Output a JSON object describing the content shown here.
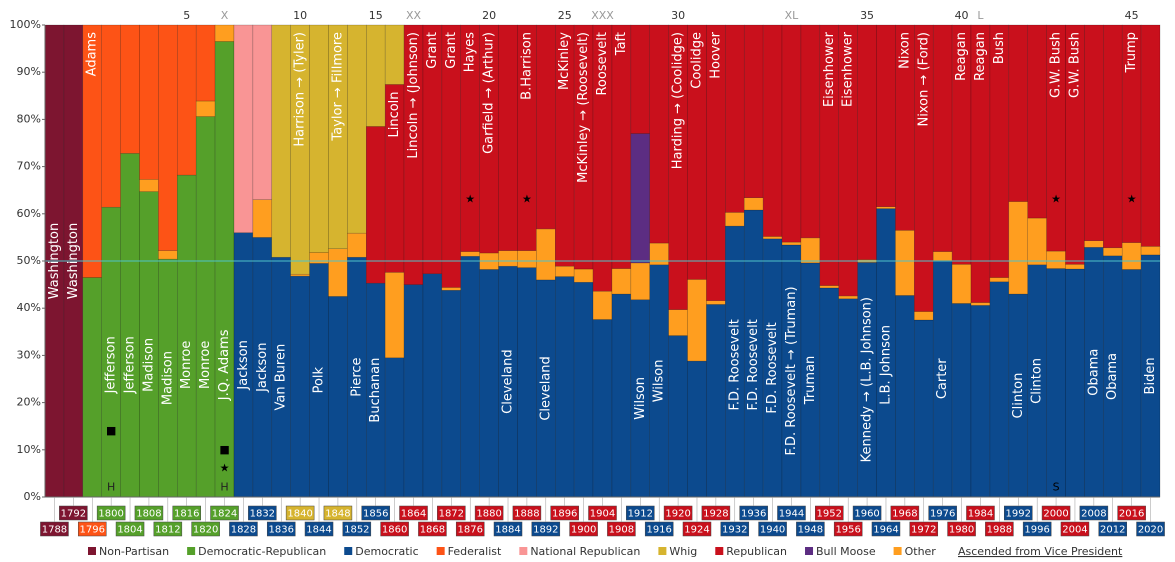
{
  "chart_data": {
    "type": "stacked_bar",
    "categories": [
      "1788",
      "1792",
      "1796",
      "1800",
      "1804",
      "1808",
      "1812",
      "1816",
      "1820",
      "1824",
      "1828",
      "1832",
      "1836",
      "1840",
      "1844",
      "1848",
      "1852",
      "1856",
      "1860",
      "1864",
      "1868",
      "1872",
      "1876",
      "1880",
      "1884",
      "1888",
      "1892",
      "1896",
      "1900",
      "1904",
      "1908",
      "1912",
      "1916",
      "1920",
      "1924",
      "1928",
      "1932",
      "1936",
      "1940",
      "1944",
      "1948",
      "1952",
      "1956",
      "1960",
      "1964",
      "1968",
      "1972",
      "1976",
      "1980",
      "1984",
      "1988",
      "1992",
      "1996",
      "2000",
      "2004",
      "2008",
      "2012",
      "2016",
      "2020"
    ],
    "series": [
      {
        "name": "Non-Partisan",
        "color": "#7d1530",
        "values": [
          100,
          100,
          null,
          null,
          null,
          null,
          null,
          null,
          null,
          null,
          null,
          null,
          null,
          null,
          null,
          null,
          null,
          null,
          null,
          null,
          null,
          null,
          null,
          null,
          null,
          null,
          null,
          null,
          null,
          null,
          null,
          null,
          null,
          null,
          null,
          null,
          null,
          null,
          null,
          null,
          null,
          null,
          null,
          null,
          null,
          null,
          null,
          null,
          null,
          null,
          null,
          null,
          null,
          null,
          null,
          null,
          null,
          null,
          null
        ]
      },
      {
        "name": "Democratic-Republican",
        "color": "#55a02a",
        "values": [
          null,
          null,
          46.5,
          61.4,
          72.8,
          64.7,
          50.4,
          68.2,
          80.6,
          96.5,
          null,
          null,
          null,
          null,
          null,
          null,
          null,
          null,
          null,
          null,
          null,
          null,
          null,
          null,
          null,
          null,
          null,
          null,
          null,
          null,
          null,
          null,
          null,
          null,
          null,
          null,
          null,
          null,
          null,
          null,
          null,
          null,
          null,
          null,
          null,
          null,
          null,
          null,
          null,
          null,
          null,
          null,
          null,
          null,
          null,
          null,
          null,
          null,
          null
        ]
      },
      {
        "name": "Democratic",
        "color": "#0c4a8e",
        "values": [
          null,
          null,
          null,
          null,
          null,
          null,
          null,
          null,
          null,
          null,
          56,
          55,
          50.8,
          46.8,
          49.5,
          42.5,
          50.8,
          45.3,
          29.5,
          45,
          47.3,
          43.8,
          51,
          48.2,
          48.9,
          48.6,
          46,
          46.7,
          45.5,
          37.6,
          43,
          41.8,
          49.2,
          34.2,
          28.8,
          40.8,
          57.4,
          60.8,
          54.7,
          53.4,
          49.6,
          44.3,
          42,
          49.7,
          61.1,
          42.7,
          37.5,
          50.1,
          41,
          40.6,
          45.6,
          43,
          49.2,
          48.4,
          48.3,
          52.9,
          51.1,
          48.2,
          51.3
        ]
      },
      {
        "name": "Federalist",
        "color": "#fd5316",
        "values": [
          null,
          null,
          53.5,
          38.6,
          27.2,
          32.7,
          47.8,
          31.8,
          16.1,
          null,
          null,
          null,
          null,
          null,
          null,
          null,
          null,
          null,
          null,
          null,
          null,
          null,
          null,
          null,
          null,
          null,
          null,
          null,
          null,
          null,
          null,
          null,
          null,
          null,
          null,
          null,
          null,
          null,
          null,
          null,
          null,
          null,
          null,
          null,
          null,
          null,
          null,
          null,
          null,
          null,
          null,
          null,
          null,
          null,
          null,
          null,
          null,
          null,
          null
        ]
      },
      {
        "name": "National Republican",
        "color": "#f99595",
        "values": [
          null,
          null,
          null,
          null,
          null,
          null,
          null,
          null,
          null,
          null,
          44,
          37,
          null,
          null,
          null,
          null,
          null,
          null,
          null,
          null,
          null,
          null,
          null,
          null,
          null,
          null,
          null,
          null,
          null,
          null,
          null,
          null,
          null,
          null,
          null,
          null,
          null,
          null,
          null,
          null,
          null,
          null,
          null,
          null,
          null,
          null,
          null,
          null,
          null,
          null,
          null,
          null,
          null,
          null,
          null,
          null,
          null,
          null,
          null
        ]
      },
      {
        "name": "Whig",
        "color": "#d6b42f",
        "values": [
          null,
          null,
          null,
          null,
          null,
          null,
          null,
          null,
          null,
          null,
          null,
          null,
          49.2,
          52.8,
          48.2,
          47.4,
          44.1,
          21.5,
          12.6,
          null,
          null,
          null,
          null,
          null,
          null,
          null,
          null,
          null,
          null,
          null,
          null,
          null,
          null,
          null,
          null,
          null,
          null,
          null,
          null,
          null,
          null,
          null,
          null,
          null,
          null,
          null,
          null,
          null,
          null,
          null,
          null,
          null,
          null,
          null,
          null,
          null,
          null,
          null,
          null
        ]
      },
      {
        "name": "Republican",
        "color": "#c9101c",
        "values": [
          null,
          null,
          null,
          null,
          null,
          null,
          null,
          null,
          null,
          null,
          null,
          null,
          null,
          null,
          null,
          null,
          null,
          33.2,
          39.8,
          55,
          52.7,
          55.6,
          48,
          48.3,
          47.8,
          47.8,
          43.2,
          51.1,
          51.7,
          56.4,
          51.6,
          23,
          46.2,
          60.3,
          53.9,
          58.4,
          39.7,
          36.6,
          44.8,
          46,
          45.1,
          55.2,
          57.4,
          49.7,
          38.5,
          43.5,
          60.7,
          48,
          50.7,
          58.8,
          53.5,
          37.4,
          40.9,
          47.9,
          50.7,
          45.7,
          47.2,
          46.1,
          46.9
        ]
      },
      {
        "name": "Bull Moose",
        "color": "#5c2d82",
        "values": [
          null,
          null,
          null,
          null,
          null,
          null,
          null,
          null,
          null,
          null,
          null,
          null,
          null,
          null,
          null,
          null,
          null,
          null,
          null,
          null,
          null,
          null,
          null,
          null,
          null,
          null,
          null,
          null,
          null,
          null,
          null,
          27.4,
          null,
          null,
          null,
          null,
          null,
          null,
          null,
          null,
          null,
          null,
          null,
          null,
          null,
          null,
          null,
          null,
          null,
          null,
          null,
          null,
          null,
          null,
          null,
          null,
          null,
          null,
          null
        ]
      },
      {
        "name": "Other",
        "color": "#ff9e1f",
        "values": [
          null,
          null,
          null,
          null,
          null,
          2.6,
          1.8,
          null,
          3.3,
          3.5,
          null,
          8,
          null,
          0.4,
          2.3,
          10.1,
          5.1,
          null,
          18.1,
          null,
          null,
          0.6,
          1,
          3.5,
          3.3,
          3.6,
          10.8,
          2.2,
          2.8,
          6,
          5.4,
          7.8,
          4.6,
          5.5,
          17.3,
          0.8,
          2.9,
          2.6,
          0.5,
          0.6,
          5.3,
          0.5,
          0.6,
          0.6,
          0.4,
          13.8,
          1.8,
          1.9,
          8.3,
          0.6,
          0.9,
          19.6,
          9.9,
          3.7,
          1,
          1.4,
          1.7,
          5.7,
          1.8
        ]
      }
    ],
    "stack_order": [
      0,
      1,
      2,
      8,
      7,
      4,
      3,
      6,
      5
    ],
    "winners": [
      {
        "text": "Washington",
        "party": "Non-Partisan"
      },
      {
        "text": "Washington",
        "party": "Non-Partisan"
      },
      {
        "text": "Adams",
        "party": "Federalist"
      },
      {
        "text": "Jefferson",
        "party": "Democratic-Republican"
      },
      {
        "text": "Jefferson",
        "party": "Democratic-Republican"
      },
      {
        "text": "Madison",
        "party": "Democratic-Republican"
      },
      {
        "text": "Madison",
        "party": "Democratic-Republican"
      },
      {
        "text": "Monroe",
        "party": "Democratic-Republican"
      },
      {
        "text": "Monroe",
        "party": "Democratic-Republican"
      },
      {
        "text": "J.Q. Adams",
        "party": "Democratic-Republican",
        "color": "#c8c8c8"
      },
      {
        "text": "Jackson",
        "party": "Democratic"
      },
      {
        "text": "Jackson",
        "party": "Democratic"
      },
      {
        "text": "Van Buren",
        "party": "Democratic"
      },
      {
        "text": "Harrison → (Tyler)",
        "party": "Whig"
      },
      {
        "text": "Polk",
        "party": "Democratic"
      },
      {
        "text": "Taylor → Fillmore",
        "party": "Whig"
      },
      {
        "text": "Pierce",
        "party": "Democratic"
      },
      {
        "text": "Buchanan",
        "party": "Democratic"
      },
      {
        "text": "Lincoln",
        "party": "Republican"
      },
      {
        "text": "Lincoln → (Johnson)",
        "party": "Republican"
      },
      {
        "text": "Grant",
        "party": "Republican"
      },
      {
        "text": "Grant",
        "party": "Republican"
      },
      {
        "text": "Hayes",
        "party": "Republican"
      },
      {
        "text": "Garfield → (Arthur)",
        "party": "Republican"
      },
      {
        "text": "Cleveland",
        "party": "Democratic"
      },
      {
        "text": "B.Harrison",
        "party": "Republican",
        "color": "#c8c8c8"
      },
      {
        "text": "Cleveland",
        "party": "Democratic"
      },
      {
        "text": "McKinley",
        "party": "Republican"
      },
      {
        "text": "McKinley → (Roosevelt)",
        "party": "Republican"
      },
      {
        "text": "Roosevelt",
        "party": "Republican"
      },
      {
        "text": "Taft",
        "party": "Republican"
      },
      {
        "text": "Wilson",
        "party": "Democratic"
      },
      {
        "text": "Wilson",
        "party": "Democratic"
      },
      {
        "text": "Harding → (Coolidge)",
        "party": "Republican"
      },
      {
        "text": "Coolidge",
        "party": "Republican"
      },
      {
        "text": "Hoover",
        "party": "Republican"
      },
      {
        "text": "F.D. Roosevelt",
        "party": "Democratic"
      },
      {
        "text": "F.D. Roosevelt",
        "party": "Democratic"
      },
      {
        "text": "F.D. Roosevelt",
        "party": "Democratic"
      },
      {
        "text": "F.D. Roosevelt → (Truman)",
        "party": "Democratic"
      },
      {
        "text": "Truman",
        "party": "Democratic"
      },
      {
        "text": "Eisenhower",
        "party": "Republican"
      },
      {
        "text": "Eisenhower",
        "party": "Republican"
      },
      {
        "text": "Kennedy → (L.B. Johnson)",
        "party": "Democratic"
      },
      {
        "text": "L.B. Johnson",
        "party": "Democratic"
      },
      {
        "text": "Nixon",
        "party": "Republican"
      },
      {
        "text": "Nixon → (Ford)",
        "party": "Republican"
      },
      {
        "text": "Carter",
        "party": "Democratic"
      },
      {
        "text": "Reagan",
        "party": "Republican"
      },
      {
        "text": "Reagan",
        "party": "Republican"
      },
      {
        "text": "Bush",
        "party": "Republican"
      },
      {
        "text": "Clinton",
        "party": "Democratic"
      },
      {
        "text": "Clinton",
        "party": "Democratic"
      },
      {
        "text": "G.W. Bush",
        "party": "Republican",
        "color": "#c8c8c8"
      },
      {
        "text": "G.W. Bush",
        "party": "Republican"
      },
      {
        "text": "Obama",
        "party": "Democratic"
      },
      {
        "text": "Obama",
        "party": "Democratic"
      },
      {
        "text": "Trump",
        "party": "Republican"
      },
      {
        "text": "Biden",
        "party": "Democratic"
      }
    ],
    "markers": [
      {
        "category": "1800",
        "text": "■"
      },
      {
        "category": "1800",
        "text": "H"
      },
      {
        "category": "1824",
        "text": "■"
      },
      {
        "category": "1824",
        "text": "★"
      },
      {
        "category": "1824",
        "text": "H"
      },
      {
        "category": "1876",
        "text": "★"
      },
      {
        "category": "1888",
        "text": "★"
      },
      {
        "category": "2000",
        "text": "★"
      },
      {
        "category": "2000",
        "text": "S"
      },
      {
        "category": "2016",
        "text": "★"
      }
    ],
    "top_labels": [
      {
        "category": "1816",
        "text": "5"
      },
      {
        "category": "1824",
        "text": "X",
        "color": "#999999"
      },
      {
        "category": "1840",
        "text": "10"
      },
      {
        "category": "1856",
        "text": "15"
      },
      {
        "category": "1864",
        "text": "XX",
        "color": "#999999"
      },
      {
        "category": "1880",
        "text": "20"
      },
      {
        "category": "1896",
        "text": "25"
      },
      {
        "category": "1904",
        "text": "XXX",
        "color": "#999999"
      },
      {
        "category": "1920",
        "text": "30"
      },
      {
        "category": "1944",
        "text": "XL",
        "color": "#999999"
      },
      {
        "category": "1960",
        "text": "35"
      },
      {
        "category": "1980",
        "text": "40"
      },
      {
        "category": "1984",
        "text": "L",
        "color": "#999999"
      },
      {
        "category": "2016",
        "text": "45"
      }
    ],
    "note": "Ascended from Vice President",
    "ylim": [
      0,
      100
    ],
    "yticks": [
      {
        "value": 0,
        "label": "0%"
      },
      {
        "value": 10,
        "label": "10%"
      },
      {
        "value": 20,
        "label": "20%"
      },
      {
        "value": 30,
        "label": "30%"
      },
      {
        "value": 40,
        "label": "40%"
      },
      {
        "value": 50,
        "label": "50%"
      },
      {
        "value": 60,
        "label": "60%"
      },
      {
        "value": 70,
        "label": "70%"
      },
      {
        "value": 80,
        "label": "80%"
      },
      {
        "value": 90,
        "label": "90%"
      },
      {
        "value": 100,
        "label": "100%"
      }
    ],
    "reference_line": {
      "value": 50,
      "color": "#4fc3c8"
    }
  }
}
